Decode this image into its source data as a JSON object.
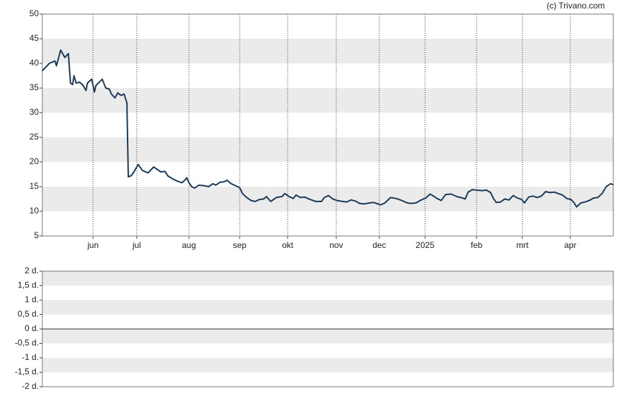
{
  "source": "(c) Trivano.com",
  "chart_data": [
    {
      "type": "line",
      "x": [
        0,
        5,
        9,
        10,
        13,
        16,
        18.5,
        20,
        21.5,
        22.5,
        24,
        26.5,
        29,
        31,
        32,
        35,
        37,
        38,
        42.5,
        45,
        47.5,
        49,
        51.5,
        53.5,
        56,
        58,
        60,
        61,
        63,
        65,
        68,
        71,
        75,
        79,
        81,
        84,
        87,
        89,
        93,
        96,
        99,
        101,
        102.5,
        104,
        106,
        108,
        111,
        115,
        118,
        121,
        123,
        126,
        129,
        131,
        134,
        137,
        140,
        142,
        145,
        148,
        151,
        154,
        157,
        159,
        162,
        166,
        170,
        172,
        175,
        178,
        180,
        183,
        186,
        190,
        194,
        198,
        200,
        203,
        206,
        209,
        213,
        216,
        219,
        222,
        225,
        228,
        232,
        235,
        238,
        240,
        243,
        247,
        251,
        255,
        258,
        261,
        265,
        268,
        272,
        275,
        278,
        280,
        283,
        286,
        290,
        294,
        298,
        300,
        302,
        305,
        308,
        312,
        315,
        318,
        320,
        322,
        325,
        328,
        331,
        334,
        337,
        340,
        342,
        345,
        348,
        351,
        354,
        357,
        360,
        363,
        366,
        369,
        372,
        375,
        377,
        379,
        382,
        385,
        388,
        391,
        394,
        397,
        400,
        403,
        405
      ],
      "series": [
        {
          "color": "#1b3a57",
          "values": [
            38.5,
            40,
            40.5,
            39.5,
            42.7,
            41.2,
            42,
            36,
            35.7,
            37.5,
            36,
            36.2,
            35.5,
            34.5,
            36,
            36.8,
            34.2,
            35.5,
            36.8,
            35,
            34.8,
            33.8,
            33,
            34,
            33.5,
            33.8,
            32,
            17,
            17.2,
            18,
            19.5,
            18.3,
            17.8,
            19,
            18.6,
            18,
            18.1,
            17.2,
            16.5,
            16.1,
            15.8,
            16.3,
            16.8,
            15.8,
            15,
            14.7,
            15.3,
            15.2,
            15,
            15.6,
            15.3,
            15.9,
            16,
            16.3,
            15.6,
            15.2,
            14.8,
            13.6,
            12.8,
            12.2,
            12,
            12.4,
            12.5,
            13,
            12,
            12.8,
            13,
            13.6,
            13,
            12.6,
            13.3,
            12.8,
            12.9,
            12.4,
            12,
            12,
            12.8,
            13.2,
            12.5,
            12.2,
            12,
            11.9,
            12.3,
            12.1,
            11.6,
            11.5,
            11.7,
            11.8,
            11.5,
            11.3,
            11.7,
            12.8,
            12.6,
            12.2,
            11.8,
            11.6,
            11.7,
            12.2,
            12.7,
            13.5,
            13,
            12.6,
            12.2,
            13.4,
            13.5,
            13,
            12.7,
            12.5,
            13.9,
            14.4,
            14.3,
            14.2,
            14.3,
            13.8,
            12.6,
            11.8,
            11.9,
            12.5,
            12.3,
            13.2,
            12.7,
            12.4,
            11.7,
            12.9,
            13.1,
            12.8,
            13.1,
            14,
            13.8,
            13.9,
            13.6,
            13.3,
            12.6,
            12.4,
            11.8,
            10.9,
            11.7,
            11.9,
            12.2,
            12.7,
            12.8,
            13.6,
            15,
            15.6,
            15.4
          ]
        }
      ],
      "xlim": [
        0,
        405
      ],
      "xticks": [
        {
          "value": 36,
          "label": "jun"
        },
        {
          "value": 67,
          "label": "jul"
        },
        {
          "value": 104,
          "label": "aug"
        },
        {
          "value": 140,
          "label": "sep"
        },
        {
          "value": 174,
          "label": "okt"
        },
        {
          "value": 208.5,
          "label": "nov"
        },
        {
          "value": 239,
          "label": "dec"
        },
        {
          "value": 271.5,
          "label": "2025"
        },
        {
          "value": 308,
          "label": "feb"
        },
        {
          "value": 340.5,
          "label": "mrt"
        },
        {
          "value": 374.5,
          "label": "apr"
        }
      ],
      "ylim": [
        5,
        50
      ],
      "yticks": [
        5,
        10,
        15,
        20,
        25,
        30,
        35,
        40,
        45,
        50
      ],
      "grid": true
    },
    {
      "type": "line",
      "xlim": [
        0,
        405
      ],
      "ylim": [
        -2,
        2
      ],
      "yticks": [
        {
          "value": 2,
          "label": "2 d."
        },
        {
          "value": 1.5,
          "label": "1,5 d."
        },
        {
          "value": 1,
          "label": "1 d."
        },
        {
          "value": 0.5,
          "label": "0,5 d."
        },
        {
          "value": 0,
          "label": "0 d."
        },
        {
          "value": -0.5,
          "label": "-0,5 d."
        },
        {
          "value": -1,
          "label": "-1 d."
        },
        {
          "value": -1.5,
          "label": "-1,5 d."
        },
        {
          "value": -2,
          "label": "-2 d."
        }
      ],
      "grid": true
    }
  ]
}
